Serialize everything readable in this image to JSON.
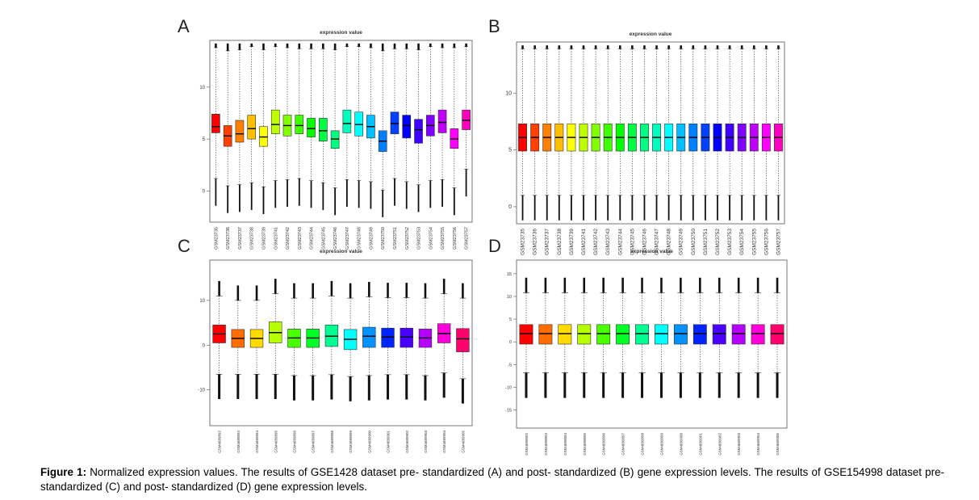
{
  "figure": {
    "caption_label": "Figure 1:",
    "caption_text": "Normalized expression values. The results of GSE1428 dataset pre- standardized (A) and post- standardized (B) gene expression levels. The results of GSE154998 dataset pre- standardized (C) and post- standardized (D) gene expression levels."
  },
  "chart_data": [
    {
      "type": "box",
      "panel": "A",
      "title": "expression value",
      "ylim": [
        -3,
        14.5
      ],
      "yticks": [
        0,
        5,
        10
      ],
      "categories": [
        "GSM23735",
        "GSM23736",
        "GSM23737",
        "GSM23738",
        "GSM23739",
        "GSM23741",
        "GSM23742",
        "GSM23743",
        "GSM23744",
        "GSM23745",
        "GSM23746",
        "GSM23747",
        "GSM23748",
        "GSM23749",
        "GSM23750",
        "GSM23751",
        "GSM23752",
        "GSM23753",
        "GSM23754",
        "GSM23755",
        "GSM23756",
        "GSM23757"
      ],
      "colors": [
        "#ff0000",
        "#ff4000",
        "#ff8000",
        "#ffbf00",
        "#ffff00",
        "#bfff00",
        "#80ff00",
        "#40ff00",
        "#00ff00",
        "#00ff40",
        "#00ff80",
        "#00ffbf",
        "#00ffff",
        "#00bfff",
        "#0080ff",
        "#0040ff",
        "#0000ff",
        "#4000ff",
        "#8000ff",
        "#bf00ff",
        "#ff00ff",
        "#ff00bf"
      ],
      "boxes": [
        {
          "q1": 5.6,
          "median": 6.2,
          "q3": 7.4,
          "wlo": 1.2,
          "whi": 13.8
        },
        {
          "q1": 4.3,
          "median": 5.3,
          "q3": 6.3,
          "wlo": 0.5,
          "whi": 13.5
        },
        {
          "q1": 4.7,
          "median": 5.5,
          "q3": 6.8,
          "wlo": 0.6,
          "whi": 13.6
        },
        {
          "q1": 5.0,
          "median": 6.0,
          "q3": 7.3,
          "wlo": 0.8,
          "whi": 13.9
        },
        {
          "q1": 4.3,
          "median": 5.2,
          "q3": 6.2,
          "wlo": 0.4,
          "whi": 13.6
        },
        {
          "q1": 5.5,
          "median": 6.4,
          "q3": 7.8,
          "wlo": 1.0,
          "whi": 13.9
        },
        {
          "q1": 5.3,
          "median": 6.3,
          "q3": 7.3,
          "wlo": 1.1,
          "whi": 13.8
        },
        {
          "q1": 5.5,
          "median": 6.3,
          "q3": 7.3,
          "wlo": 1.2,
          "whi": 13.7
        },
        {
          "q1": 5.2,
          "median": 6.0,
          "q3": 7.0,
          "wlo": 1.0,
          "whi": 13.7
        },
        {
          "q1": 4.8,
          "median": 5.8,
          "q3": 7.0,
          "wlo": 0.8,
          "whi": 13.7
        },
        {
          "q1": 4.1,
          "median": 5.0,
          "q3": 5.8,
          "wlo": 0.3,
          "whi": 13.6
        },
        {
          "q1": 5.6,
          "median": 6.5,
          "q3": 7.8,
          "wlo": 1.1,
          "whi": 13.9
        },
        {
          "q1": 5.3,
          "median": 6.4,
          "q3": 7.6,
          "wlo": 1.0,
          "whi": 13.9
        },
        {
          "q1": 5.1,
          "median": 6.2,
          "q3": 7.3,
          "wlo": 0.9,
          "whi": 13.8
        },
        {
          "q1": 3.8,
          "median": 4.8,
          "q3": 5.8,
          "wlo": 0.1,
          "whi": 13.5
        },
        {
          "q1": 5.5,
          "median": 6.5,
          "q3": 7.6,
          "wlo": 1.2,
          "whi": 13.7
        },
        {
          "q1": 5.1,
          "median": 6.3,
          "q3": 7.3,
          "wlo": 0.9,
          "whi": 13.7
        },
        {
          "q1": 4.6,
          "median": 5.9,
          "q3": 6.9,
          "wlo": 0.6,
          "whi": 13.6
        },
        {
          "q1": 5.3,
          "median": 6.3,
          "q3": 7.3,
          "wlo": 1.0,
          "whi": 13.9
        },
        {
          "q1": 5.6,
          "median": 6.6,
          "q3": 7.8,
          "wlo": 1.1,
          "whi": 13.8
        },
        {
          "q1": 4.1,
          "median": 5.0,
          "q3": 6.0,
          "wlo": 0.3,
          "whi": 13.8
        },
        {
          "q1": 5.9,
          "median": 6.8,
          "q3": 7.8,
          "wlo": 2.1,
          "whi": 13.9
        }
      ]
    },
    {
      "type": "box",
      "panel": "B",
      "title": "expression value",
      "ylim": [
        -1.5,
        14.5
      ],
      "yticks": [
        0,
        5,
        10
      ],
      "categories": [
        "GSM23735",
        "GSM23736",
        "GSM23737",
        "GSM23738",
        "GSM23739",
        "GSM23741",
        "GSM23742",
        "GSM23743",
        "GSM23744",
        "GSM23745",
        "GSM23746",
        "GSM23747",
        "GSM23748",
        "GSM23749",
        "GSM23750",
        "GSM23751",
        "GSM23752",
        "GSM23753",
        "GSM23754",
        "GSM23755",
        "GSM23756",
        "GSM23757"
      ],
      "colors": [
        "#ff0000",
        "#ff4000",
        "#ff8000",
        "#ffbf00",
        "#ffff00",
        "#bfff00",
        "#80ff00",
        "#40ff00",
        "#00ff00",
        "#00ff40",
        "#00ff80",
        "#00ffbf",
        "#00ffff",
        "#00bfff",
        "#0080ff",
        "#0040ff",
        "#0000ff",
        "#4000ff",
        "#8000ff",
        "#bf00ff",
        "#ff00ff",
        "#ff00bf"
      ],
      "boxes": "uniform",
      "uniform_box": {
        "q1": 4.9,
        "median": 6.1,
        "q3": 7.3,
        "wlo": 1.0,
        "whi": 13.9
      }
    },
    {
      "type": "box",
      "panel": "C",
      "title": "expression value",
      "ylim": [
        -18,
        19
      ],
      "yticks": [
        -10,
        0,
        10
      ],
      "categories": [
        "GSM4689892",
        "GSM4689893",
        "GSM4689894",
        "GSM4689895",
        "GSM4689896",
        "GSM4689897",
        "GSM4689898",
        "GSM4689899",
        "GSM4689900",
        "GSM4689901",
        "GSM4689902",
        "GSM4689903",
        "GSM4689904",
        "GSM4689905"
      ],
      "colors": [
        "#ff0000",
        "#ff6d00",
        "#ffdb00",
        "#b6ff00",
        "#49ff00",
        "#00ff24",
        "#00ff92",
        "#00ffff",
        "#0092ff",
        "#0024ff",
        "#4900ff",
        "#b600ff",
        "#ff00db",
        "#ff006d"
      ],
      "boxes": [
        {
          "q1": 0.5,
          "median": 2.5,
          "q3": 4.5,
          "wlo": -6.5,
          "whi": 11.0
        },
        {
          "q1": -0.5,
          "median": 1.5,
          "q3": 3.5,
          "wlo": -6.5,
          "whi": 10.0
        },
        {
          "q1": -0.5,
          "median": 1.5,
          "q3": 3.5,
          "wlo": -6.5,
          "whi": 10.0
        },
        {
          "q1": 0.5,
          "median": 2.8,
          "q3": 5.2,
          "wlo": -6.5,
          "whi": 11.5
        },
        {
          "q1": -0.5,
          "median": 1.6,
          "q3": 3.6,
          "wlo": -6.8,
          "whi": 10.5
        },
        {
          "q1": -0.5,
          "median": 1.6,
          "q3": 3.6,
          "wlo": -6.8,
          "whi": 10.5
        },
        {
          "q1": -0.3,
          "median": 2.0,
          "q3": 4.5,
          "wlo": -6.6,
          "whi": 11.0
        },
        {
          "q1": -1.0,
          "median": 1.3,
          "q3": 3.5,
          "wlo": -7.0,
          "whi": 10.5
        },
        {
          "q1": -0.5,
          "median": 2.0,
          "q3": 4.0,
          "wlo": -6.8,
          "whi": 10.8
        },
        {
          "q1": -0.5,
          "median": 1.8,
          "q3": 3.8,
          "wlo": -6.6,
          "whi": 10.6
        },
        {
          "q1": -0.5,
          "median": 1.8,
          "q3": 3.8,
          "wlo": -6.6,
          "whi": 10.6
        },
        {
          "q1": -0.5,
          "median": 1.6,
          "q3": 3.6,
          "wlo": -6.8,
          "whi": 10.5
        },
        {
          "q1": 0.5,
          "median": 2.6,
          "q3": 4.8,
          "wlo": -6.2,
          "whi": 11.5
        },
        {
          "q1": -1.5,
          "median": 1.4,
          "q3": 3.7,
          "wlo": -7.5,
          "whi": 10.5
        }
      ]
    },
    {
      "type": "box",
      "panel": "D",
      "title": "expression value",
      "ylim": [
        -19,
        18
      ],
      "yticks": [
        -15,
        -10,
        -5,
        0,
        5,
        10,
        15
      ],
      "categories": [
        "GSM4689892",
        "GSM4689893",
        "GSM4689894",
        "GSM4689895",
        "GSM4689896",
        "GSM4689897",
        "GSM4689898",
        "GSM4689899",
        "GSM4689900",
        "GSM4689901",
        "GSM4689902",
        "GSM4689903",
        "GSM4689904",
        "GSM4689905"
      ],
      "colors": [
        "#ff0000",
        "#ff6d00",
        "#ffdb00",
        "#b6ff00",
        "#49ff00",
        "#00ff24",
        "#00ff92",
        "#00ffff",
        "#0092ff",
        "#0024ff",
        "#4900ff",
        "#b600ff",
        "#ff00db",
        "#ff006d"
      ],
      "boxes": "uniform",
      "uniform_box": {
        "q1": -0.5,
        "median": 1.8,
        "q3": 3.8,
        "wlo": -6.8,
        "whi": 10.8
      }
    }
  ]
}
